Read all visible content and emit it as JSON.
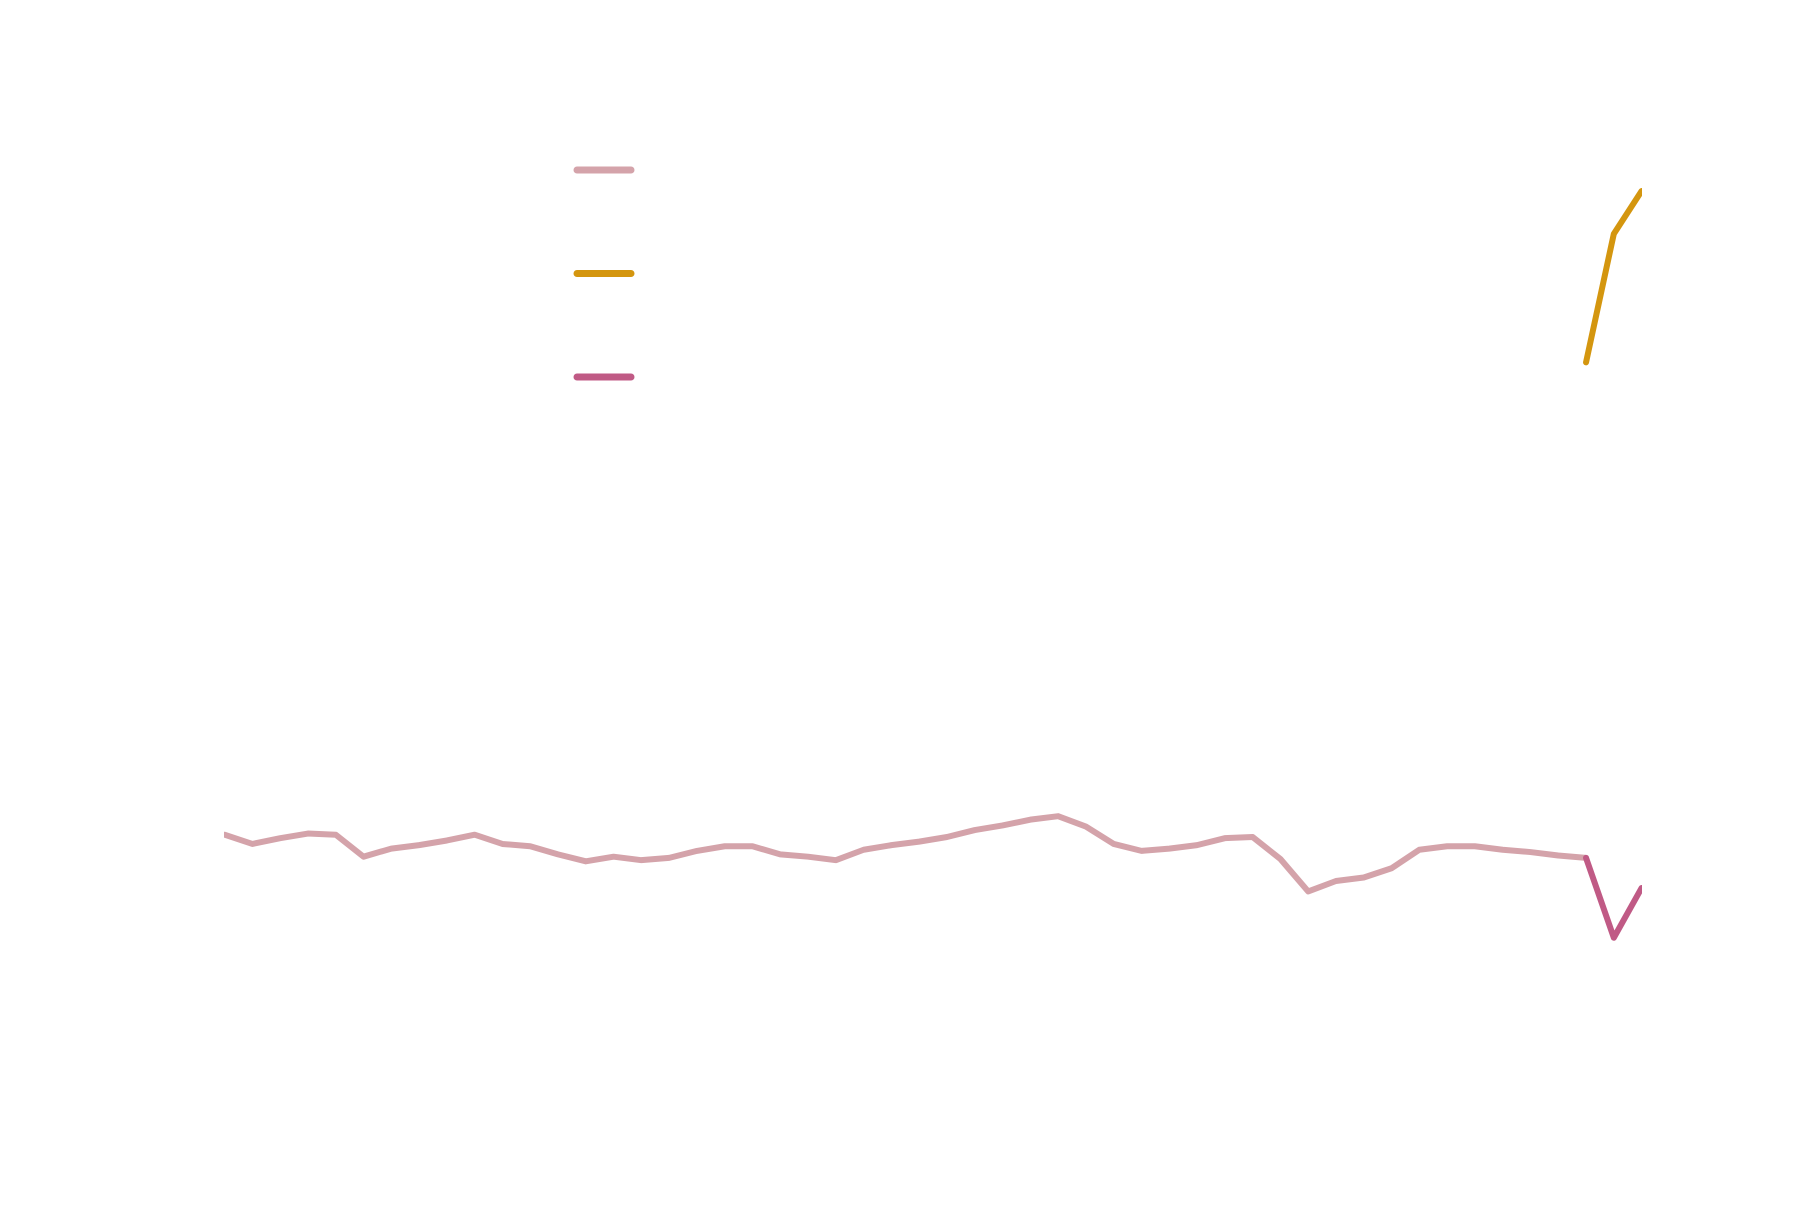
{
  "chart_data": {
    "type": "line",
    "x": [
      0,
      1,
      2,
      3,
      4,
      5,
      6,
      7,
      8,
      9,
      10,
      11,
      12,
      13,
      14,
      15,
      16,
      17,
      18,
      19,
      20,
      21,
      22,
      23,
      24,
      25,
      26,
      27,
      28,
      29,
      30,
      31,
      32,
      33,
      34,
      35,
      36,
      37,
      38,
      39,
      40,
      41,
      42,
      43,
      44,
      45,
      46,
      47,
      48,
      49,
      50,
      51
    ],
    "xlim": [
      0,
      51
    ],
    "ylim": [
      0,
      104
    ],
    "legend": "upper left",
    "series": [
      {
        "color": "#d4a3aa",
        "values": [
          31.9,
          31.1,
          31.6,
          32.0,
          31.9,
          30.0,
          30.7,
          31.0,
          31.4,
          31.9,
          31.1,
          30.9,
          30.2,
          29.6,
          30.0,
          29.7,
          29.9,
          30.5,
          30.9,
          30.9,
          30.2,
          30.0,
          29.7,
          30.6,
          31.0,
          31.3,
          31.7,
          32.3,
          32.7,
          33.2,
          33.5,
          32.6,
          31.1,
          30.5,
          30.7,
          31.0,
          31.6,
          31.7,
          29.8,
          27.0,
          27.9,
          28.2,
          29.0,
          30.6,
          30.9,
          30.9,
          30.6,
          30.4,
          30.1,
          29.9,
          null,
          null
        ]
      },
      {
        "color": "#d4960f",
        "values": [
          null,
          null,
          null,
          null,
          null,
          null,
          null,
          null,
          null,
          null,
          null,
          null,
          null,
          null,
          null,
          null,
          null,
          null,
          null,
          null,
          null,
          null,
          null,
          null,
          null,
          null,
          null,
          null,
          null,
          null,
          null,
          null,
          null,
          null,
          null,
          null,
          null,
          null,
          null,
          null,
          null,
          null,
          null,
          null,
          null,
          null,
          null,
          null,
          null,
          72.7,
          83.8,
          87.5
        ]
      },
      {
        "color": "#c05a85",
        "values": [
          null,
          null,
          null,
          null,
          null,
          null,
          null,
          null,
          null,
          null,
          null,
          null,
          null,
          null,
          null,
          null,
          null,
          null,
          null,
          null,
          null,
          null,
          null,
          null,
          null,
          null,
          null,
          null,
          null,
          null,
          null,
          null,
          null,
          null,
          null,
          null,
          null,
          null,
          null,
          null,
          null,
          null,
          null,
          null,
          null,
          null,
          null,
          null,
          null,
          29.9,
          23.0,
          27.3
        ]
      }
    ]
  }
}
